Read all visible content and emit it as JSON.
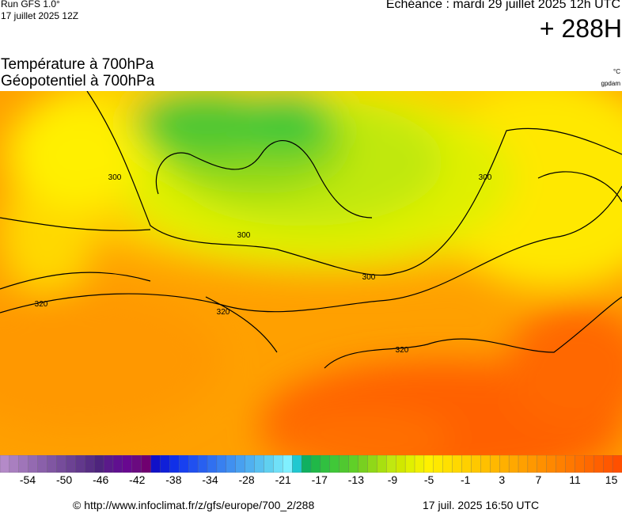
{
  "header": {
    "run": "Run GFS 1.0°",
    "run_date": "17 juillet 2025 12Z",
    "echeance": "Echéance : mardi 29 juillet 2025 12h UTC",
    "lead": "+ 288H"
  },
  "titles": {
    "line1": "Température à 700hPa",
    "line2": "Géopotentiel à 700hPa",
    "unit1": "°C",
    "unit2": "gpdam"
  },
  "map": {
    "contour_labels": [
      "300",
      "300",
      "300",
      "300",
      "320",
      "320",
      "320"
    ]
  },
  "colorbar": {
    "ticks": [
      -54,
      -50,
      -46,
      -42,
      -38,
      -34,
      -28,
      -21,
      -17,
      -13,
      -9,
      -5,
      -1,
      3,
      7,
      11,
      15
    ],
    "colors": [
      "#b48ac8",
      "#a97fc0",
      "#9f75b9",
      "#946ab1",
      "#8a60aa",
      "#8056a2",
      "#764c9b",
      "#6c4293",
      "#62388c",
      "#582e84",
      "#4e247d",
      "#5a1a8a",
      "#601090",
      "#680890",
      "#6a0a80",
      "#700070",
      "#1010c8",
      "#1020d8",
      "#1030e8",
      "#1840f0",
      "#2050f0",
      "#2860f0",
      "#3070f0",
      "#3880f0",
      "#4090f0",
      "#48a0f0",
      "#50b0f0",
      "#58c0f0",
      "#60d0f0",
      "#70e0f8",
      "#80f0ff",
      "#20c8d0",
      "#10b060",
      "#20b848",
      "#30c040",
      "#40c838",
      "#50c830",
      "#60d028",
      "#78d020",
      "#90d818",
      "#a8e010",
      "#c0e810",
      "#d0e800",
      "#e0f000",
      "#f0f000",
      "#fff000",
      "#ffe800",
      "#ffe000",
      "#ffd800",
      "#ffd000",
      "#ffc800",
      "#ffc000",
      "#ffb800",
      "#ffb000",
      "#ffa800",
      "#ffa000",
      "#ff9800",
      "#ff9000",
      "#ff8800",
      "#ff8000",
      "#ff7800",
      "#ff7000",
      "#ff6800",
      "#ff6000",
      "#ff5800",
      "#ff5000"
    ]
  },
  "footer": {
    "url": "© http://www.infoclimat.fr/z/gfs/europe/700_2/288",
    "timestamp": "17 juil. 2025 16:50 UTC"
  }
}
